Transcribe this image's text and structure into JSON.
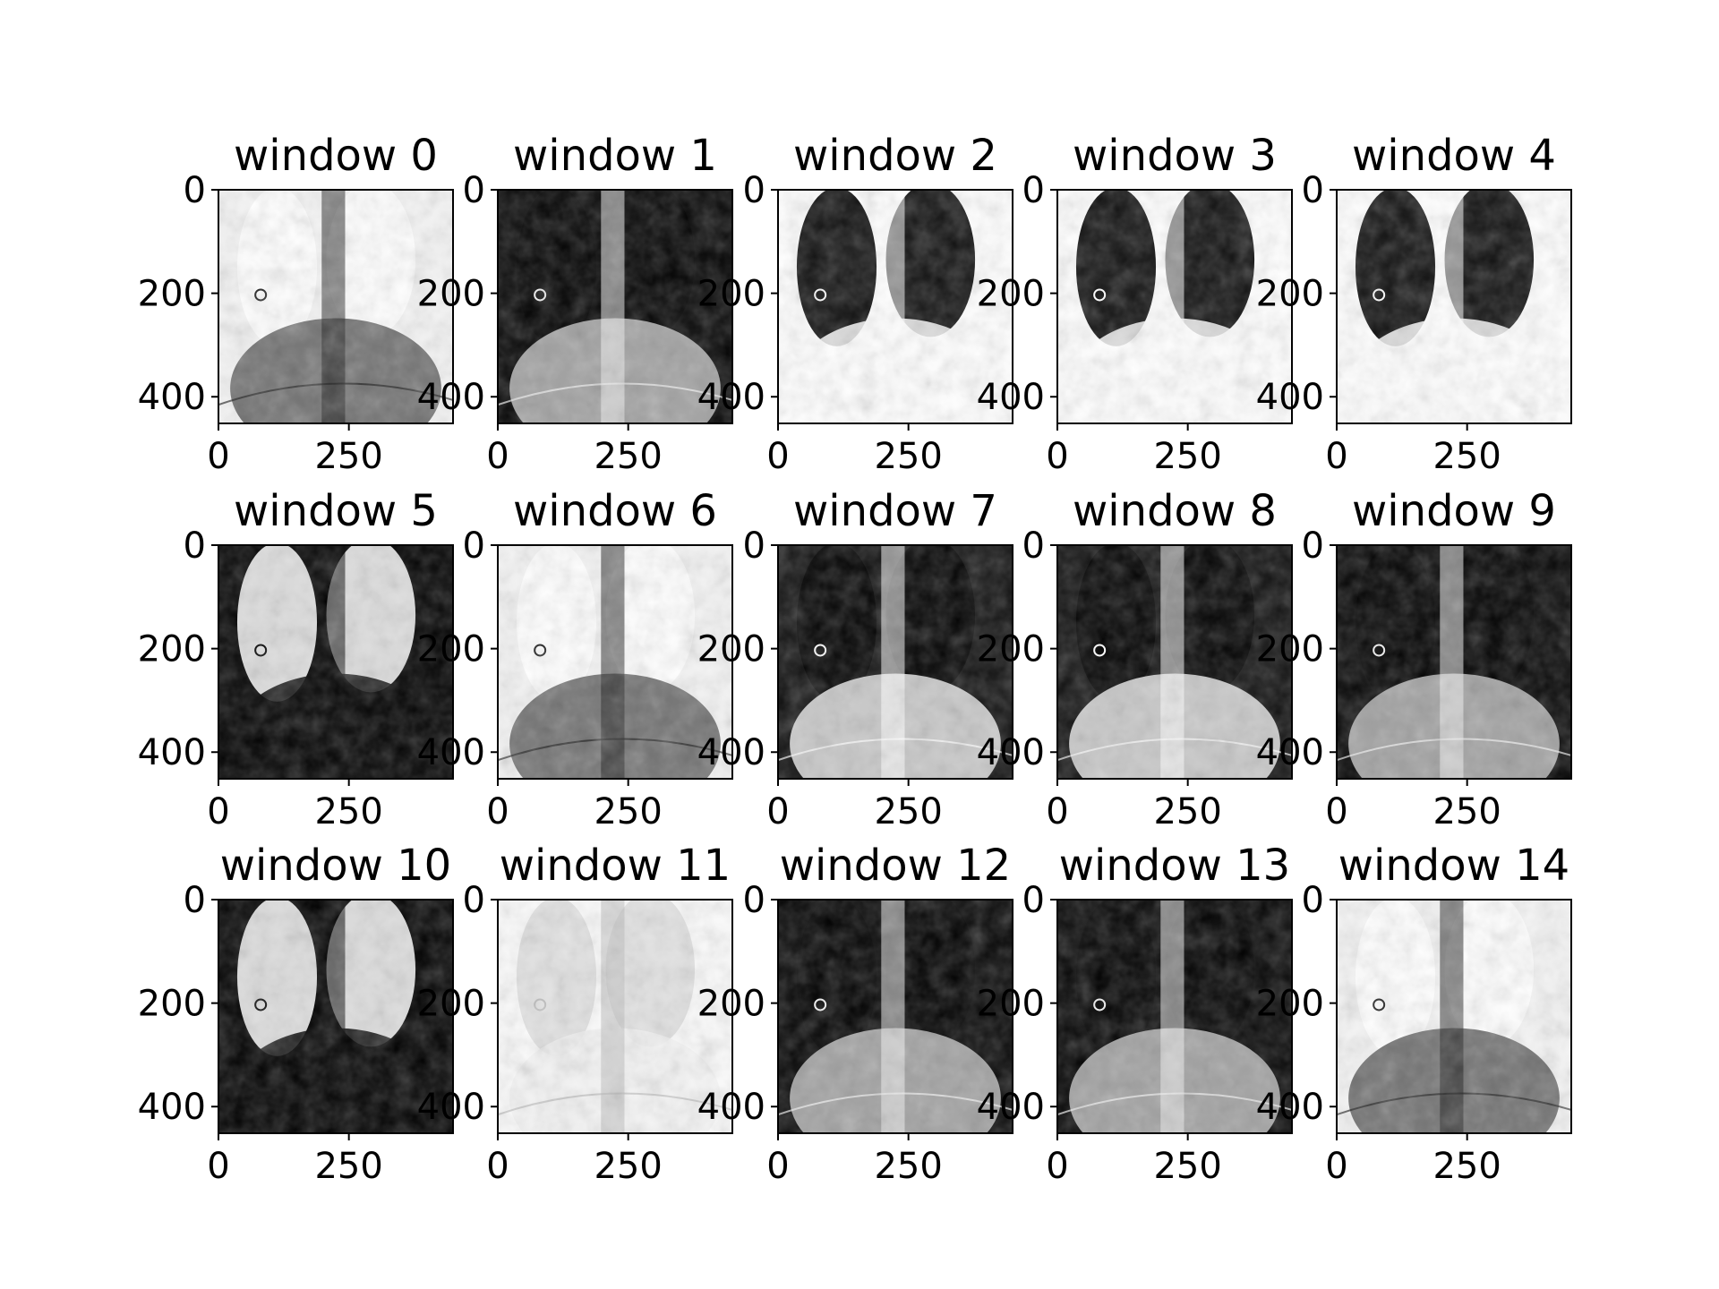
{
  "figure": {
    "kind": "image-grid",
    "rows": 3,
    "cols": 5,
    "x_ticks": [
      "0",
      "250"
    ],
    "y_ticks": [
      "0",
      "200",
      "400"
    ],
    "panels": [
      {
        "title": "window 0",
        "tone": "light"
      },
      {
        "title": "window 1",
        "tone": "dark"
      },
      {
        "title": "window 2",
        "tone": "light-lungs-dark"
      },
      {
        "title": "window 3",
        "tone": "light-lungs-dark"
      },
      {
        "title": "window 4",
        "tone": "light-lungs-dark"
      },
      {
        "title": "window 5",
        "tone": "dark-lungs-light"
      },
      {
        "title": "window 6",
        "tone": "light"
      },
      {
        "title": "window 7",
        "tone": "mid"
      },
      {
        "title": "window 8",
        "tone": "mid"
      },
      {
        "title": "window 9",
        "tone": "dark"
      },
      {
        "title": "window 10",
        "tone": "dark-lungs-light"
      },
      {
        "title": "window 11",
        "tone": "very-light"
      },
      {
        "title": "window 12",
        "tone": "dark"
      },
      {
        "title": "window 13",
        "tone": "dark"
      },
      {
        "title": "window 14",
        "tone": "light"
      }
    ]
  },
  "colors": {
    "axis": "#000000",
    "background": "#ffffff"
  }
}
